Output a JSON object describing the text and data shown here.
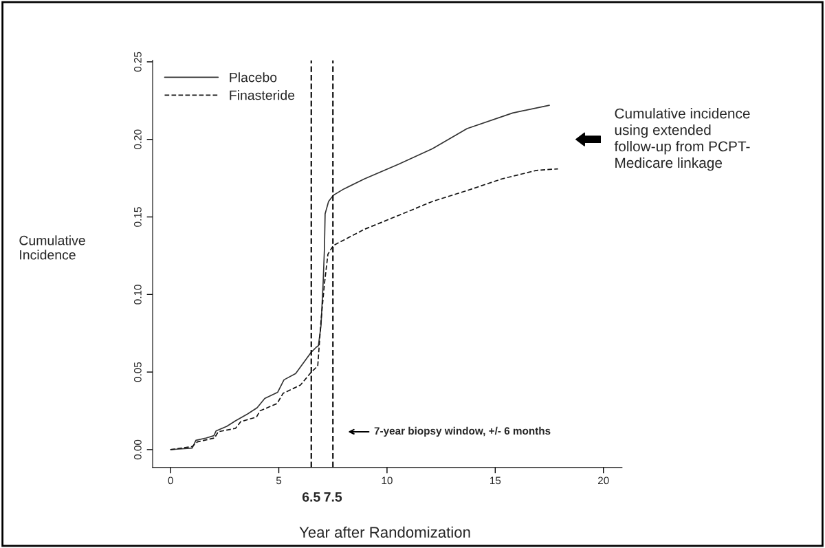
{
  "chart_data": {
    "type": "line",
    "xlabel": "Year after Randomization",
    "ylabel": "Cumulative\nIncidence",
    "xlim": [
      -0.83,
      20.86
    ],
    "ylim": [
      -0.0115,
      0.251
    ],
    "xticks": [
      0,
      5,
      10,
      15,
      20
    ],
    "yticks": [
      {
        "value": 0,
        "label": "0.00"
      },
      {
        "value": 0.05,
        "label": "0.05"
      },
      {
        "value": 0.1,
        "label": "0.10"
      },
      {
        "value": 0.15,
        "label": "0.15"
      },
      {
        "value": 0.2,
        "label": "0.20"
      },
      {
        "value": 0.25,
        "label": "0.25"
      }
    ],
    "grid": false,
    "legend": "top left",
    "marker": "none",
    "series": [
      {
        "name": "Placebo",
        "color": "#333333",
        "line_style": "solid",
        "x": [
          0,
          1.0,
          1.17,
          1.65,
          2.0,
          2.1,
          2.6,
          3.0,
          3.56,
          4.0,
          4.35,
          4.95,
          5.24,
          5.78,
          6.48,
          6.73,
          6.83,
          6.95,
          7.05,
          7.11,
          7.14,
          7.3,
          7.52,
          8.0,
          8.95,
          10.54,
          12.1,
          13.7,
          15.8,
          17.5
        ],
        "values": [
          0,
          0.001,
          0.006,
          0.0075,
          0.009,
          0.012,
          0.015,
          0.0186,
          0.023,
          0.027,
          0.033,
          0.037,
          0.045,
          0.049,
          0.0625,
          0.066,
          0.067,
          0.08,
          0.108,
          0.13,
          0.152,
          0.16,
          0.164,
          0.168,
          0.1745,
          0.184,
          0.194,
          0.207,
          0.217,
          0.222
        ]
      },
      {
        "name": "Finasteride",
        "color": "#111111",
        "line_style": "dashed",
        "x": [
          0,
          1.0,
          1.24,
          2.03,
          2.2,
          3.0,
          3.24,
          3.97,
          4.13,
          4.92,
          5.2,
          6.0,
          6.48,
          6.8,
          6.95,
          7.11,
          7.27,
          7.52,
          8.95,
          10.54,
          12.1,
          13.7,
          15.3,
          16.9,
          17.9
        ],
        "values": [
          0,
          0.002,
          0.005,
          0.0075,
          0.0115,
          0.0137,
          0.018,
          0.021,
          0.025,
          0.0297,
          0.0363,
          0.0416,
          0.0496,
          0.054,
          0.083,
          0.107,
          0.126,
          0.1316,
          0.142,
          0.151,
          0.16,
          0.167,
          0.1745,
          0.18,
          0.181
        ]
      }
    ],
    "ref_lines": [
      {
        "axis": "x",
        "value": 6.5,
        "label": "6.5",
        "color": "#000000",
        "line_style": "dashed"
      },
      {
        "axis": "x",
        "value": 7.5,
        "label": "7.5",
        "color": "#000000",
        "line_style": "dashed"
      }
    ],
    "annotations": [
      "Cumulative incidence\nusing extended\nfollow-up from PCPT-\nMedicare linkage",
      "7-year biopsy window, +/- 6 months"
    ]
  }
}
